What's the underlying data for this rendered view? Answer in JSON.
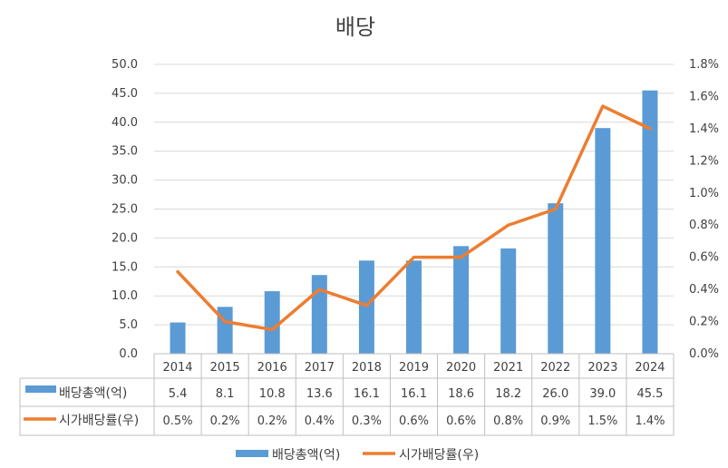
{
  "chart_data": {
    "type": "bar",
    "title": "배당",
    "categories": [
      "2014",
      "2015",
      "2016",
      "2017",
      "2018",
      "2019",
      "2020",
      "2021",
      "2022",
      "2023",
      "2024"
    ],
    "series": [
      {
        "name": "배당총액(억)",
        "chart_type": "bar",
        "axis": "left",
        "color": "#5b9bd5",
        "values": [
          5.4,
          8.1,
          10.8,
          13.6,
          16.1,
          16.1,
          18.6,
          18.2,
          26.0,
          39.0,
          45.5
        ],
        "table_labels": [
          "5.4",
          "8.1",
          "10.8",
          "13.6",
          "16.1",
          "16.1",
          "18.6",
          "18.2",
          "26.0",
          "39.0",
          "45.5"
        ]
      },
      {
        "name": "시가배당률(우)",
        "chart_type": "line",
        "axis": "right",
        "color": "#ed7d31",
        "values": [
          0.51,
          0.2,
          0.15,
          0.4,
          0.3,
          0.6,
          0.6,
          0.8,
          0.9,
          1.54,
          1.4
        ],
        "table_labels": [
          "0.5%",
          "0.2%",
          "0.2%",
          "0.4%",
          "0.3%",
          "0.6%",
          "0.6%",
          "0.8%",
          "0.9%",
          "1.5%",
          "1.4%"
        ]
      }
    ],
    "y_left": {
      "ylim": [
        0,
        50
      ],
      "ticks": [
        0,
        5,
        10,
        15,
        20,
        25,
        30,
        35,
        40,
        45,
        50
      ],
      "tick_labels": [
        "0.0",
        "5.0",
        "10.0",
        "15.0",
        "20.0",
        "25.0",
        "30.0",
        "35.0",
        "40.0",
        "45.0",
        "50.0"
      ]
    },
    "y_right": {
      "ylim": [
        0,
        1.8
      ],
      "ticks": [
        0,
        0.2,
        0.4,
        0.6,
        0.8,
        1.0,
        1.2,
        1.4,
        1.6,
        1.8
      ],
      "tick_labels": [
        "0.0%",
        "0.2%",
        "0.4%",
        "0.6%",
        "0.8%",
        "1.0%",
        "1.2%",
        "1.4%",
        "1.6%",
        "1.8%"
      ]
    },
    "grid": true,
    "legend_position": "bottom",
    "data_table": true
  }
}
